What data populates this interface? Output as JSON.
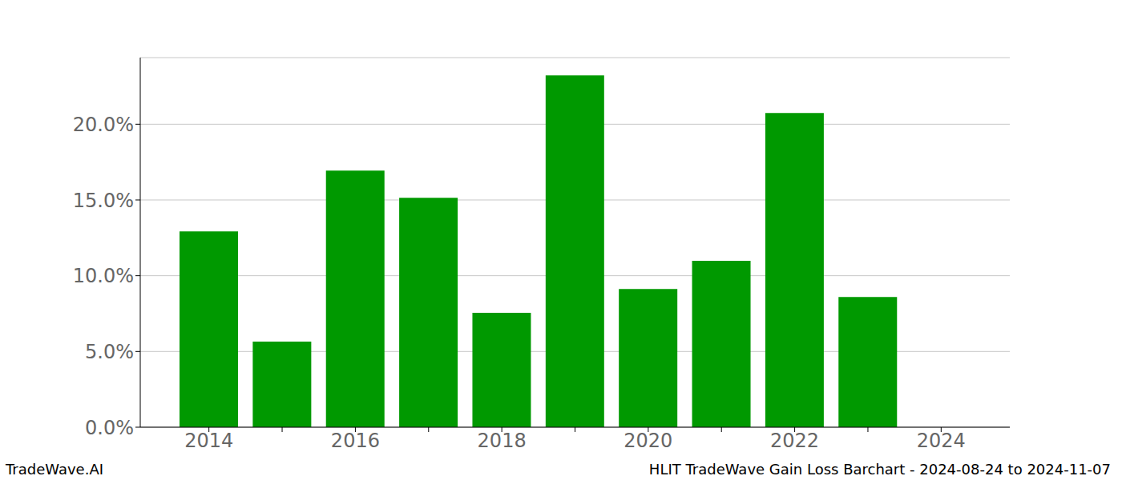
{
  "chart_data": {
    "type": "bar",
    "categories": [
      "2014",
      null,
      "2016",
      null,
      "2018",
      null,
      "2020",
      null,
      "2022",
      null,
      "2024"
    ],
    "values": [
      12.93,
      5.65,
      16.94,
      15.15,
      7.55,
      23.22,
      9.13,
      10.98,
      20.74,
      8.6,
      null
    ],
    "color": "#009900",
    "ylim": [
      0,
      24.4
    ],
    "yticks": [
      {
        "value": 0,
        "label": "0.0%"
      },
      {
        "value": 5,
        "label": "5.0%"
      },
      {
        "value": 10,
        "label": "10.0%"
      },
      {
        "value": 15,
        "label": "15.0%"
      },
      {
        "value": 20,
        "label": "20.0%"
      }
    ],
    "grid": true,
    "annotations": [
      "TradeWave.AI",
      "HLIT TradeWave Gain Loss Barchart - 2024-08-24 to 2024-11-07"
    ]
  }
}
